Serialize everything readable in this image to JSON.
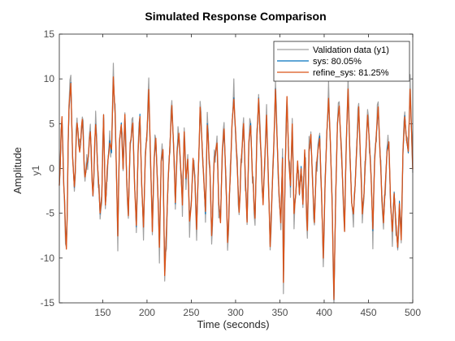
{
  "chart_data": {
    "type": "line",
    "title": "Simulated Response Comparison",
    "xlabel": "Time (seconds)",
    "ylabel": "Amplitude",
    "channel_label": "y1",
    "xlim": [
      101,
      500
    ],
    "ylim": [
      -15,
      15
    ],
    "xticks": [
      150,
      200,
      250,
      300,
      350,
      400,
      450,
      500
    ],
    "yticks": [
      -15,
      -10,
      -5,
      0,
      5,
      10,
      15
    ],
    "grid": false,
    "legend_position": "top-right",
    "legend": [
      "Validation data (y1)",
      "sys: 80.05%",
      "refine_sys:  81.25%"
    ],
    "series_colors": [
      "#a0a0a0",
      "#0072bd",
      "#d95319"
    ],
    "x_step": 1,
    "keypoints": [
      [
        101,
        -2
      ],
      [
        104,
        6
      ],
      [
        106,
        -2
      ],
      [
        109,
        -9
      ],
      [
        112,
        7
      ],
      [
        114,
        9.8
      ],
      [
        116,
        1
      ],
      [
        118,
        -2
      ],
      [
        121,
        5
      ],
      [
        124,
        2
      ],
      [
        127,
        5.5
      ],
      [
        130,
        -1
      ],
      [
        133,
        1
      ],
      [
        136,
        4
      ],
      [
        139,
        -3
      ],
      [
        142,
        5
      ],
      [
        145,
        -1
      ],
      [
        147,
        -5
      ],
      [
        149,
        -3
      ],
      [
        151,
        6
      ],
      [
        153,
        -4
      ],
      [
        156,
        1
      ],
      [
        158,
        3
      ],
      [
        160,
        2
      ],
      [
        162,
        10.5
      ],
      [
        164,
        6
      ],
      [
        166,
        -3
      ],
      [
        167,
        -7.5
      ],
      [
        169,
        3
      ],
      [
        171,
        5
      ],
      [
        173,
        0
      ],
      [
        175,
        6
      ],
      [
        177,
        -1
      ],
      [
        179,
        -5.5
      ],
      [
        181,
        3
      ],
      [
        184,
        5
      ],
      [
        186,
        -2
      ],
      [
        188,
        -6.5
      ],
      [
        190,
        2
      ],
      [
        192,
        6
      ],
      [
        194,
        -2
      ],
      [
        196,
        -6.5
      ],
      [
        198,
        1
      ],
      [
        200,
        4
      ],
      [
        202,
        9
      ],
      [
        204,
        1
      ],
      [
        206,
        -7
      ],
      [
        208,
        1
      ],
      [
        210,
        3.5
      ],
      [
        212,
        -2
      ],
      [
        214,
        -9
      ],
      [
        216,
        1
      ],
      [
        218,
        2
      ],
      [
        220,
        -12
      ],
      [
        222,
        -7
      ],
      [
        224,
        -1
      ],
      [
        226,
        3
      ],
      [
        228,
        7
      ],
      [
        230,
        3
      ],
      [
        232,
        -4
      ],
      [
        234,
        2
      ],
      [
        236,
        4
      ],
      [
        238,
        0
      ],
      [
        240,
        -4
      ],
      [
        242,
        4
      ],
      [
        244,
        -1
      ],
      [
        246,
        1
      ],
      [
        248,
        -6
      ],
      [
        250,
        -4
      ],
      [
        252,
        1
      ],
      [
        254,
        -1
      ],
      [
        256,
        -7
      ],
      [
        258,
        0
      ],
      [
        260,
        7
      ],
      [
        262,
        3
      ],
      [
        264,
        -1
      ],
      [
        266,
        -5
      ],
      [
        268,
        5
      ],
      [
        271,
        0
      ],
      [
        273,
        -7.5
      ],
      [
        276,
        1
      ],
      [
        279,
        3
      ],
      [
        281,
        -4
      ],
      [
        283,
        -6
      ],
      [
        285,
        2
      ],
      [
        287,
        4.5
      ],
      [
        289,
        -1
      ],
      [
        291,
        -8.5
      ],
      [
        294,
        -1
      ],
      [
        296,
        5
      ],
      [
        298,
        8
      ],
      [
        300,
        4
      ],
      [
        302,
        0
      ],
      [
        304,
        -5
      ],
      [
        307,
        2
      ],
      [
        309,
        5
      ],
      [
        311,
        -1
      ],
      [
        313,
        -6
      ],
      [
        315,
        3
      ],
      [
        317,
        5
      ],
      [
        319,
        -1
      ],
      [
        322,
        -5.5
      ],
      [
        324,
        3
      ],
      [
        326,
        8
      ],
      [
        328,
        3
      ],
      [
        331,
        -4
      ],
      [
        333,
        1
      ],
      [
        335,
        6
      ],
      [
        337,
        -1
      ],
      [
        339,
        -9
      ],
      [
        341,
        -3
      ],
      [
        343,
        2
      ],
      [
        345,
        9
      ],
      [
        347,
        3
      ],
      [
        349,
        -3
      ],
      [
        351,
        -6
      ],
      [
        353,
        1
      ],
      [
        354,
        -13
      ],
      [
        356,
        0
      ],
      [
        358,
        8
      ],
      [
        360,
        1
      ],
      [
        362,
        -2
      ],
      [
        364,
        5
      ],
      [
        366,
        -5
      ],
      [
        368,
        -3
      ],
      [
        370,
        1
      ],
      [
        372,
        -3
      ],
      [
        374,
        0
      ],
      [
        376,
        -4
      ],
      [
        378,
        2
      ],
      [
        381,
        -7
      ],
      [
        383,
        2
      ],
      [
        385,
        4
      ],
      [
        387,
        -2
      ],
      [
        389,
        -6
      ],
      [
        391,
        0
      ],
      [
        393,
        2
      ],
      [
        395,
        3.5
      ],
      [
        397,
        -3
      ],
      [
        399,
        -10
      ],
      [
        401,
        -2
      ],
      [
        403,
        4
      ],
      [
        405,
        8
      ],
      [
        407,
        3
      ],
      [
        409,
        -4
      ],
      [
        411,
        -15
      ],
      [
        413,
        -3
      ],
      [
        415,
        5
      ],
      [
        417,
        7
      ],
      [
        419,
        3
      ],
      [
        421,
        -2
      ],
      [
        423,
        -7
      ],
      [
        425,
        3
      ],
      [
        427,
        9
      ],
      [
        429,
        2
      ],
      [
        431,
        -4
      ],
      [
        433,
        -5
      ],
      [
        435,
        -2
      ],
      [
        437,
        3
      ],
      [
        439,
        7
      ],
      [
        441,
        1
      ],
      [
        443,
        -5
      ],
      [
        445,
        -3
      ],
      [
        447,
        2
      ],
      [
        449,
        6
      ],
      [
        451,
        3
      ],
      [
        453,
        -1
      ],
      [
        455,
        -7
      ],
      [
        457,
        1
      ],
      [
        459,
        4
      ],
      [
        461,
        7
      ],
      [
        463,
        2
      ],
      [
        465,
        -3
      ],
      [
        467,
        -6
      ],
      [
        469,
        -2
      ],
      [
        471,
        2
      ],
      [
        473,
        3
      ],
      [
        475,
        -4
      ],
      [
        477,
        -7
      ],
      [
        479,
        -3
      ],
      [
        481,
        -6
      ],
      [
        483,
        -9
      ],
      [
        485,
        -4
      ],
      [
        487,
        -8
      ],
      [
        489,
        2
      ],
      [
        491,
        6
      ],
      [
        493,
        3
      ],
      [
        495,
        2
      ],
      [
        497,
        9
      ],
      [
        499,
        3
      ],
      [
        500,
        0
      ]
    ]
  }
}
